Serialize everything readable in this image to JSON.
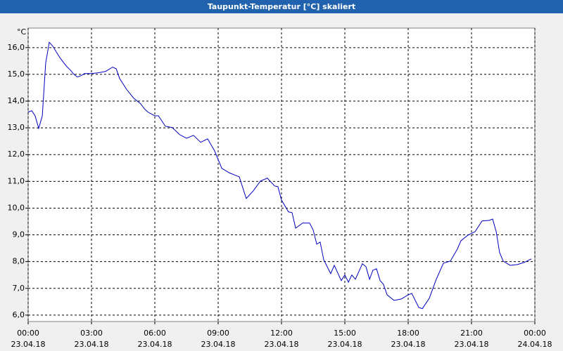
{
  "chart_data": {
    "type": "line",
    "title": "Taupunkt-Temperatur [°C] skaliert",
    "y_unit": "°C",
    "xlim": [
      0,
      24
    ],
    "xticks": [
      {
        "value": 0,
        "label": "00:00"
      },
      {
        "value": 3,
        "label": "03:00"
      },
      {
        "value": 6,
        "label": "06:00"
      },
      {
        "value": 9,
        "label": "09:00"
      },
      {
        "value": 12,
        "label": "12:00"
      },
      {
        "value": 15,
        "label": "15:00"
      },
      {
        "value": 18,
        "label": "18:00"
      },
      {
        "value": 21,
        "label": "21:00"
      },
      {
        "value": 24,
        "label": "00:00"
      }
    ],
    "xtick_dates": [
      "23.04.18",
      "23.04.18",
      "23.04.18",
      "23.04.18",
      "23.04.18",
      "23.04.18",
      "23.04.18",
      "23.04.18",
      "24.04.18"
    ],
    "ylim": [
      5.76,
      16.73
    ],
    "yticks": [
      {
        "value": 6,
        "label": "6,0"
      },
      {
        "value": 7,
        "label": "7,0"
      },
      {
        "value": 8,
        "label": "8,0"
      },
      {
        "value": 9,
        "label": "9,0"
      },
      {
        "value": 10,
        "label": "10,0"
      },
      {
        "value": 11,
        "label": "11,0"
      },
      {
        "value": 12,
        "label": "12,0"
      },
      {
        "value": 13,
        "label": "13,0"
      },
      {
        "value": 14,
        "label": "14,0"
      },
      {
        "value": 15,
        "label": "15,0"
      },
      {
        "value": 16,
        "label": "16,0"
      }
    ],
    "grid": true,
    "series": [
      {
        "color": "#0000c0",
        "x": [
          0,
          0.17,
          0.33,
          0.5,
          0.67,
          0.83,
          1.0,
          1.17,
          1.33,
          1.5,
          1.67,
          1.83,
          2.0,
          2.17,
          2.33,
          2.5,
          2.67,
          3.0,
          3.33,
          3.67,
          4.0,
          4.17,
          4.33,
          4.67,
          5.0,
          5.33,
          5.5,
          5.67,
          6.0,
          6.17,
          6.5,
          6.83,
          7.17,
          7.5,
          7.83,
          8.17,
          8.5,
          8.83,
          9.17,
          9.5,
          9.83,
          10.0,
          10.33,
          10.67,
          11.0,
          11.33,
          11.67,
          11.83,
          12.0,
          12.33,
          12.5,
          12.67,
          13.0,
          13.33,
          13.5,
          13.67,
          13.83,
          14.0,
          14.33,
          14.5,
          14.83,
          15.0,
          15.17,
          15.33,
          15.5,
          15.83,
          16.0,
          16.17,
          16.33,
          16.5,
          16.67,
          16.83,
          17.0,
          17.33,
          17.67,
          18.0,
          18.17,
          18.5,
          18.67,
          19.0,
          19.33,
          19.67,
          20.0,
          20.33,
          20.5,
          20.83,
          21.17,
          21.5,
          21.83,
          22.0,
          22.17,
          22.33,
          22.5,
          22.83,
          23.17,
          23.5,
          23.83
        ],
        "values": [
          13.59,
          13.64,
          13.45,
          12.98,
          13.45,
          15.42,
          16.2,
          16.05,
          15.84,
          15.63,
          15.45,
          15.29,
          15.16,
          15.0,
          14.9,
          14.95,
          15.03,
          15.03,
          15.06,
          15.11,
          15.27,
          15.21,
          14.85,
          14.43,
          14.11,
          13.9,
          13.72,
          13.59,
          13.45,
          13.45,
          13.06,
          13.01,
          12.75,
          12.61,
          12.72,
          12.46,
          12.59,
          12.14,
          11.49,
          11.33,
          11.22,
          11.17,
          10.36,
          10.65,
          11.01,
          11.12,
          10.83,
          10.8,
          10.3,
          9.86,
          9.83,
          9.25,
          9.44,
          9.44,
          9.18,
          8.65,
          8.73,
          8.07,
          7.55,
          7.86,
          7.29,
          7.5,
          7.23,
          7.5,
          7.34,
          7.92,
          7.81,
          7.34,
          7.68,
          7.73,
          7.29,
          7.15,
          6.76,
          6.55,
          6.6,
          6.76,
          6.81,
          6.29,
          6.24,
          6.63,
          7.34,
          7.94,
          8.02,
          8.47,
          8.78,
          8.99,
          9.12,
          9.52,
          9.54,
          9.59,
          9.12,
          8.34,
          8.02,
          7.86,
          7.89,
          7.97,
          8.1
        ]
      }
    ]
  }
}
